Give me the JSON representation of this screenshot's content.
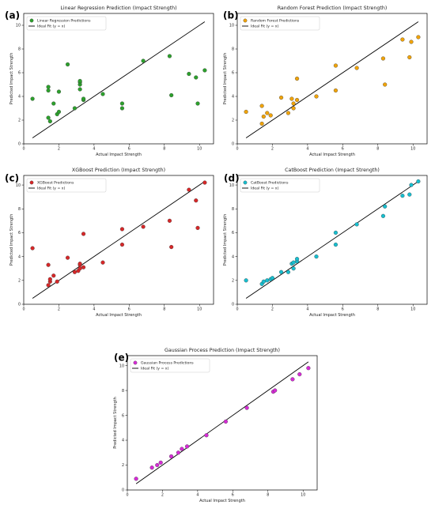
{
  "figure": {
    "background": "#ffffff"
  },
  "chart_data": [
    {
      "letter": "(a)",
      "type": "scatter",
      "title": "Linear Regression Prediction (Impact Strength)",
      "xlabel": "Actual Impact Strength",
      "ylabel": "Predicted Impact Strength",
      "xlim": [
        0,
        10.8
      ],
      "ylim": [
        0,
        11
      ],
      "xticks": [
        0,
        2,
        4,
        6,
        8,
        10
      ],
      "yticks": [
        0,
        2,
        4,
        6,
        8,
        10
      ],
      "legend": [
        "Linear Regression Predictions",
        "Ideal Fit (y = x)"
      ],
      "legend_position": "top-left",
      "color": "#2ca02c",
      "x": [
        0.5,
        1.4,
        1.4,
        1.4,
        1.5,
        1.7,
        1.9,
        2.0,
        2.0,
        2.5,
        2.9,
        3.2,
        3.2,
        3.2,
        3.2,
        3.4,
        3.4,
        4.5,
        5.6,
        5.6,
        6.8,
        8.3,
        8.4,
        9.4,
        9.8,
        9.9,
        10.3
      ],
      "y": [
        3.8,
        2.2,
        4.5,
        4.8,
        1.9,
        3.4,
        2.5,
        2.7,
        4.4,
        6.7,
        3.0,
        4.6,
        5.0,
        5.2,
        5.3,
        3.7,
        3.8,
        4.2,
        3.0,
        3.4,
        7.0,
        7.4,
        4.1,
        5.9,
        5.6,
        3.4,
        6.2
      ]
    },
    {
      "letter": "(b)",
      "type": "scatter",
      "title": "Random Forest Prediction (Impact Strength)",
      "xlabel": "Actual Impact Strength",
      "ylabel": "Predicted Impact Strength",
      "xlim": [
        0,
        10.8
      ],
      "ylim": [
        0,
        11
      ],
      "xticks": [
        0,
        2,
        4,
        6,
        8,
        10
      ],
      "yticks": [
        0,
        2,
        4,
        6,
        8,
        10
      ],
      "legend": [
        "Random Forest Predictions",
        "Ideal Fit (y = x)"
      ],
      "legend_position": "top-left",
      "color": "#f0a30a",
      "x": [
        0.5,
        1.4,
        1.4,
        1.5,
        1.7,
        1.9,
        2.5,
        2.9,
        3.1,
        3.2,
        3.2,
        3.4,
        3.4,
        4.5,
        5.6,
        5.6,
        6.8,
        8.3,
        8.4,
        9.4,
        9.8,
        9.9,
        10.3
      ],
      "y": [
        2.7,
        3.2,
        1.7,
        2.3,
        2.6,
        2.4,
        3.9,
        2.6,
        3.8,
        3.0,
        3.4,
        3.7,
        5.5,
        4.0,
        4.5,
        6.6,
        6.4,
        7.2,
        5.0,
        8.8,
        7.3,
        8.6,
        9.0
      ]
    },
    {
      "letter": "(c)",
      "type": "scatter",
      "title": "XGBoost Prediction (Impact Strength)",
      "xlabel": "Actual Impact Strength",
      "ylabel": "Predicted Impact Strength",
      "xlim": [
        0,
        10.8
      ],
      "ylim": [
        0,
        10.8
      ],
      "xticks": [
        0,
        2,
        4,
        6,
        8,
        10
      ],
      "yticks": [
        0,
        2,
        4,
        6,
        8,
        10
      ],
      "legend": [
        "XGBoost Predictions",
        "Ideal Fit (y = x)"
      ],
      "legend_position": "top-left",
      "color": "#d62728",
      "x": [
        0.5,
        1.4,
        1.4,
        1.5,
        1.5,
        1.7,
        1.9,
        2.5,
        2.9,
        3.1,
        3.2,
        3.2,
        3.2,
        3.4,
        3.4,
        4.5,
        5.6,
        5.6,
        6.8,
        8.3,
        8.4,
        9.4,
        9.8,
        9.9,
        10.3
      ],
      "y": [
        4.7,
        3.3,
        1.6,
        1.9,
        2.1,
        2.4,
        1.9,
        3.9,
        2.7,
        2.8,
        3.0,
        3.3,
        3.4,
        3.1,
        5.9,
        3.5,
        6.3,
        5.0,
        6.5,
        7.0,
        4.8,
        9.6,
        8.7,
        6.4,
        10.2
      ]
    },
    {
      "letter": "(d)",
      "type": "scatter",
      "title": "CatBoost Prediction (Impact Strength)",
      "xlabel": "Actual Impact Strength",
      "ylabel": "Predicted Impact Strength",
      "xlim": [
        0,
        10.8
      ],
      "ylim": [
        0,
        10.8
      ],
      "xticks": [
        0,
        2,
        4,
        6,
        8,
        10
      ],
      "yticks": [
        0,
        2,
        4,
        6,
        8,
        10
      ],
      "legend": [
        "CatBoost Predictions",
        "Ideal Fit (y = x)"
      ],
      "legend_position": "top-left",
      "color": "#17becf",
      "x": [
        0.5,
        1.4,
        1.5,
        1.7,
        1.9,
        2.0,
        2.5,
        2.9,
        3.1,
        3.2,
        3.2,
        3.4,
        3.4,
        4.5,
        5.6,
        5.6,
        6.8,
        8.3,
        8.4,
        9.4,
        9.8,
        9.9,
        10.3
      ],
      "y": [
        2.0,
        1.7,
        1.9,
        2.0,
        2.1,
        2.2,
        2.7,
        2.7,
        3.4,
        3.0,
        3.5,
        3.6,
        3.8,
        4.0,
        5.0,
        6.0,
        6.7,
        7.4,
        8.2,
        9.1,
        9.2,
        10.0,
        10.3
      ]
    },
    {
      "letter": "(e)",
      "type": "scatter",
      "title": "Gaussian Process Prediction (Impact Strength)",
      "xlabel": "Actual Impact Strength",
      "ylabel": "Predicted Impact Strength",
      "xlim": [
        0,
        10.8
      ],
      "ylim": [
        0,
        10.8
      ],
      "xticks": [
        0,
        2,
        4,
        6,
        8,
        10
      ],
      "yticks": [
        0,
        2,
        4,
        6,
        8,
        10
      ],
      "legend": [
        "Gaussian Process Predictions",
        "Ideal Fit (y = x)"
      ],
      "legend_position": "top-left",
      "color": "#d62bd6",
      "x": [
        0.5,
        1.4,
        1.7,
        1.9,
        2.5,
        2.9,
        3.1,
        3.4,
        4.5,
        5.6,
        6.8,
        8.3,
        8.4,
        9.4,
        9.8,
        10.3
      ],
      "y": [
        0.9,
        1.8,
        2.0,
        2.2,
        2.7,
        3.0,
        3.3,
        3.5,
        4.4,
        5.5,
        6.6,
        7.9,
        8.0,
        8.9,
        9.3,
        9.8
      ]
    }
  ]
}
